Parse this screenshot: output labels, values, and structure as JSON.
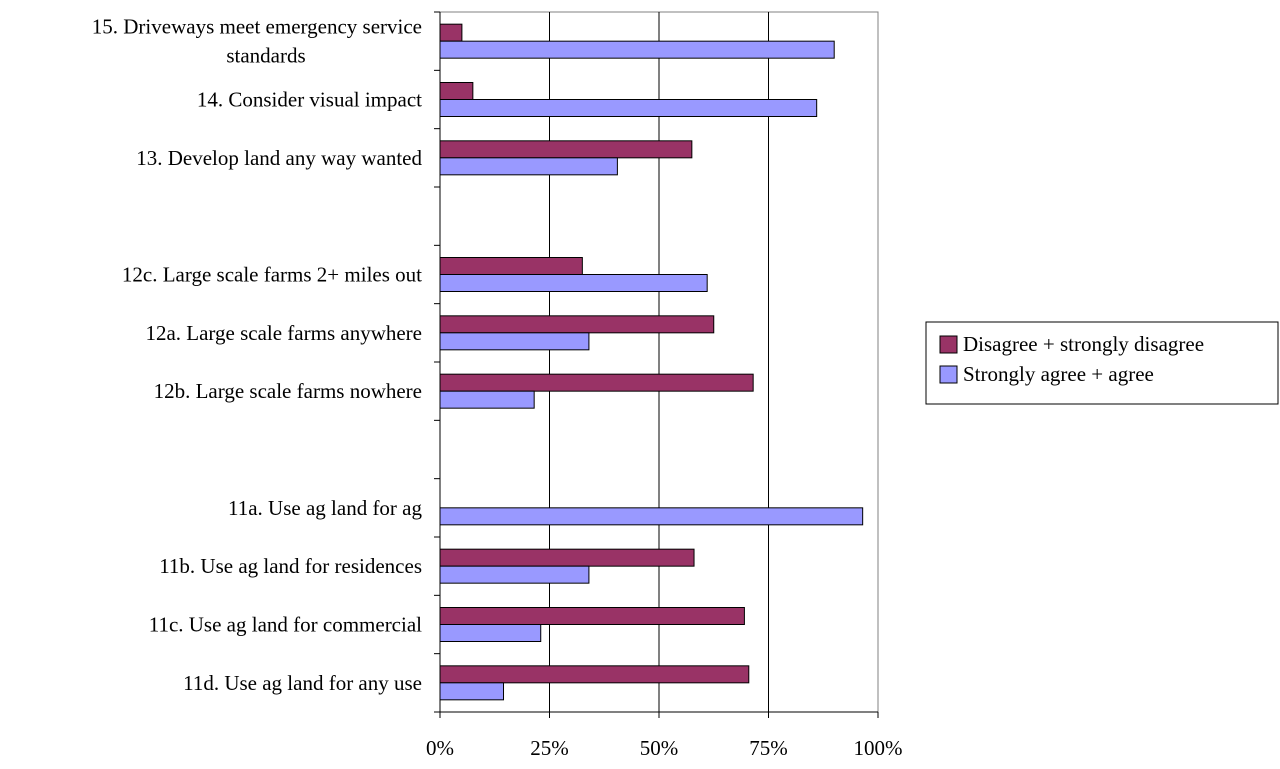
{
  "chart_data": {
    "type": "bar",
    "orientation": "horizontal",
    "categories": [
      [
        "15. Driveways meet emergency service",
        "standards"
      ],
      [
        "14. Consider visual impact"
      ],
      [
        "13. Develop land any way wanted"
      ],
      [],
      [
        "12c. Large scale farms 2+ miles out"
      ],
      [
        "12a. Large scale farms anywhere"
      ],
      [
        "12b. Large scale farms nowhere"
      ],
      [],
      [
        "11a. Use ag land for ag"
      ],
      [
        "11b. Use ag land for residences"
      ],
      [
        "11c. Use ag land for commercial"
      ],
      [
        "11d. Use ag land for any use"
      ]
    ],
    "series": [
      {
        "name": "Disagree + strongly disagree",
        "color": "#993366",
        "values": [
          5,
          7.5,
          57.5,
          null,
          32.5,
          62.5,
          71.5,
          null,
          0,
          58,
          69.5,
          70.5
        ]
      },
      {
        "name": "Strongly agree + agree",
        "color": "#9999ff",
        "values": [
          90,
          86,
          40.5,
          null,
          61,
          34,
          21.5,
          null,
          96.5,
          34,
          23,
          14.5
        ]
      }
    ],
    "xlim": [
      0,
      100
    ],
    "xticks": [
      "0%",
      "25%",
      "50%",
      "75%",
      "100%"
    ],
    "gridlines": true,
    "legend_position": "right"
  }
}
